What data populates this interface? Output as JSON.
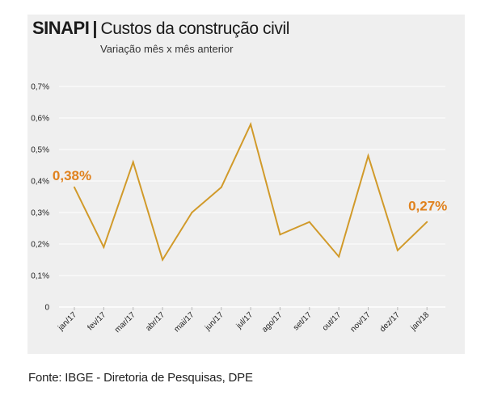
{
  "header": {
    "brand": "SINAPI",
    "separator": "|",
    "title": "Custos da construção civil",
    "subtitle": "Variação mês x mês anterior"
  },
  "source": "Fonte: IBGE - Diretoria de Pesquisas, DPE",
  "colors": {
    "line": "#d19a2a",
    "highlight": "#e0821e",
    "panel": "#efefef",
    "grid": "#ffffff"
  },
  "chart_data": {
    "type": "line",
    "categories": [
      "jan/17",
      "fev/17",
      "mar/17",
      "abr/17",
      "mai/17",
      "jun/17",
      "jul/17",
      "ago/17",
      "set/17",
      "out/17",
      "nov/17",
      "dez/17",
      "jan/18"
    ],
    "series": [
      {
        "values": [
          0.38,
          0.19,
          0.46,
          0.15,
          0.3,
          0.38,
          0.58,
          0.23,
          0.27,
          0.16,
          0.48,
          0.18,
          0.27
        ]
      }
    ],
    "ylim": [
      0,
      0.7
    ],
    "yticks": [
      0,
      0.1,
      0.2,
      0.3,
      0.4,
      0.5,
      0.6,
      0.7
    ],
    "ytick_labels": [
      "0",
      "0,1%",
      "0,2%",
      "0,3%",
      "0,4%",
      "0,5%",
      "0,6%",
      "0,7%"
    ],
    "grid": true,
    "annotations": [
      {
        "category": "jan/17",
        "text": "0,38%"
      },
      {
        "category": "jan/18",
        "text": "0,27%"
      }
    ]
  }
}
